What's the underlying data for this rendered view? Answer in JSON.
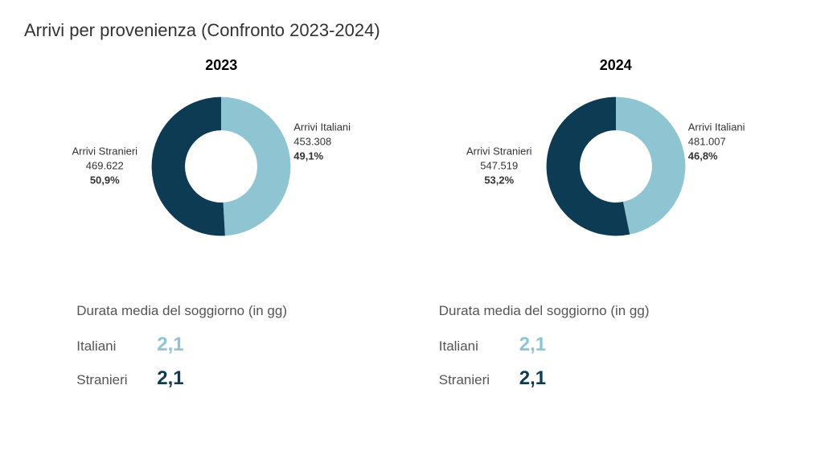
{
  "title": "Arrivi per provenienza (Confronto 2023-2024)",
  "colors": {
    "dark": "#0d3b53",
    "light": "#8fc5d3",
    "text": "#333333",
    "muted": "#555555",
    "background": "#ffffff"
  },
  "charts": [
    {
      "year": "2023",
      "donut": {
        "inner_ratio": 0.52,
        "slices": [
          {
            "key": "stranieri",
            "label": "Arrivi Stranieri",
            "value_text": "469.622",
            "pct_text": "50,9%",
            "pct": 50.9,
            "color": "#0d3b53",
            "side": "left"
          },
          {
            "key": "italiani",
            "label": "Arrivi Italiani",
            "value_text": "453.308",
            "pct_text": "49,1%",
            "pct": 49.1,
            "color": "#8fc5d3",
            "side": "right"
          }
        ]
      },
      "stats": {
        "title": "Durata media del soggiorno (in gg)",
        "rows": [
          {
            "label": "Italiani",
            "value": "2,1",
            "color": "#8fc5d3"
          },
          {
            "label": "Stranieri",
            "value": "2,1",
            "color": "#0d3b53"
          }
        ]
      }
    },
    {
      "year": "2024",
      "donut": {
        "inner_ratio": 0.52,
        "slices": [
          {
            "key": "stranieri",
            "label": "Arrivi Stranieri",
            "value_text": "547.519",
            "pct_text": "53,2%",
            "pct": 53.2,
            "color": "#0d3b53",
            "side": "left"
          },
          {
            "key": "italiani",
            "label": "Arrivi Italiani",
            "value_text": "481.007",
            "pct_text": "46,8%",
            "pct": 46.8,
            "color": "#8fc5d3",
            "side": "right"
          }
        ]
      },
      "stats": {
        "title": "Durata media del soggiorno (in gg)",
        "rows": [
          {
            "label": "Italiani",
            "value": "2,1",
            "color": "#8fc5d3"
          },
          {
            "label": "Stranieri",
            "value": "2,1",
            "color": "#0d3b53"
          }
        ]
      }
    }
  ]
}
